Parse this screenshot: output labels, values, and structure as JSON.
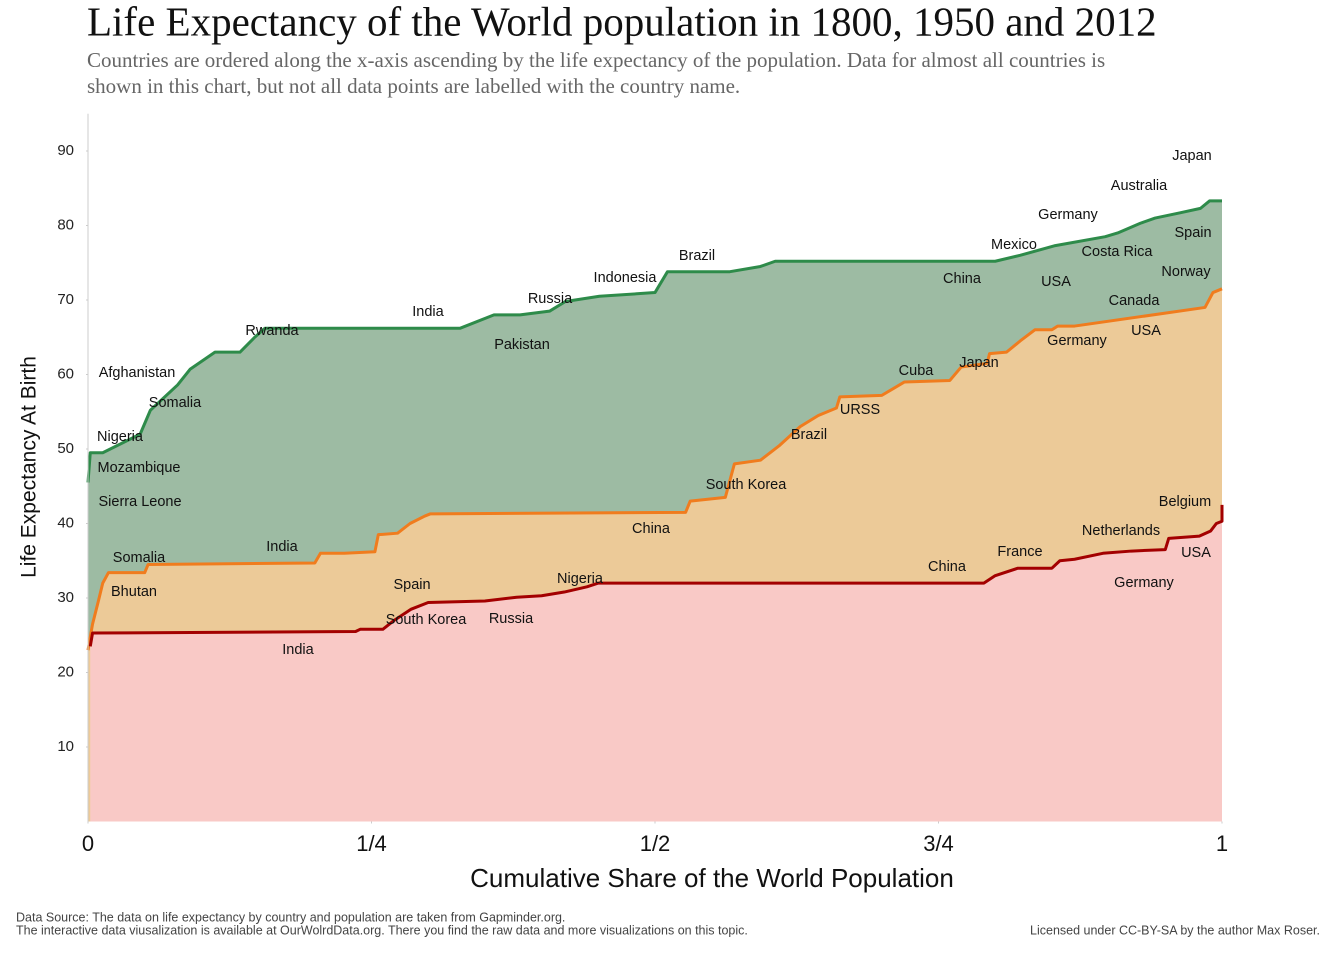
{
  "chart_data": {
    "type": "area",
    "title": "Life Expectancy of the World population in 1800, 1950 and 2012",
    "subtitle": [
      "Countries are ordered along the x-axis ascending by the life expectancy of the population. Data for almost all countries is",
      "shown in this chart, but not all data points are labelled with the country name."
    ],
    "x_label": "Cumulative Share of the World Population",
    "y_label": "Life Expectancy At Birth",
    "xlim": [
      0,
      1
    ],
    "ylim": [
      0,
      95
    ],
    "xticks": [
      0,
      {
        "value": 0.25,
        "label": "1/4"
      },
      {
        "value": 0.5,
        "label": "1/2"
      },
      {
        "value": 0.75,
        "label": "3/4"
      },
      1
    ],
    "yticks": [
      10,
      20,
      30,
      40,
      50,
      60,
      70,
      80,
      90
    ],
    "series": [
      {
        "color": "#2e8b4a",
        "fill": "#9dbba3",
        "x": [
          0,
          0.002,
          0.013,
          0.046,
          0.055,
          0.079,
          0.09,
          0.112,
          0.134,
          0.147,
          0.156,
          0.328,
          0.358,
          0.381,
          0.407,
          0.421,
          0.451,
          0.5,
          0.511,
          0.566,
          0.593,
          0.606,
          0.8,
          0.822,
          0.853,
          0.897,
          0.908,
          0.928,
          0.941,
          0.963,
          0.981,
          0.989,
          1
        ],
        "values": [
          45.5,
          49.5,
          49.5,
          52,
          55.2,
          58.6,
          60.7,
          63,
          63,
          65,
          66.2,
          66.2,
          68,
          68,
          68.5,
          69.8,
          70.5,
          71,
          73.8,
          73.8,
          74.5,
          75.2,
          75.2,
          76,
          77.3,
          78.5,
          79,
          80.3,
          81,
          81.7,
          82.3,
          83.3,
          83.3
        ]
      },
      {
        "color": "#f07c1e",
        "fill": "#ecca98",
        "x": [
          0,
          0.004,
          0.009,
          0.013,
          0.018,
          0.05,
          0.053,
          0.2,
          0.205,
          0.226,
          0.253,
          0.256,
          0.273,
          0.284,
          0.297,
          0.302,
          0.527,
          0.531,
          0.562,
          0.57,
          0.593,
          0.61,
          0.628,
          0.644,
          0.66,
          0.663,
          0.7,
          0.72,
          0.76,
          0.77,
          0.793,
          0.795,
          0.81,
          0.822,
          0.835,
          0.85,
          0.855,
          0.87,
          0.985,
          0.992,
          1
        ],
        "values": [
          23,
          26.5,
          29.5,
          32,
          33.4,
          33.4,
          34.5,
          34.7,
          36,
          36,
          36.2,
          38.5,
          38.7,
          40,
          41,
          41.3,
          41.5,
          43,
          43.5,
          48,
          48.5,
          50.5,
          53,
          54.5,
          55.5,
          57,
          57.2,
          59,
          59.2,
          61,
          61.5,
          62.8,
          63,
          64.5,
          66,
          66,
          66.5,
          66.5,
          69,
          71,
          71.5
        ]
      },
      {
        "color": "#a30000",
        "fill": "#f9c9c6",
        "x": [
          0.002,
          0.004,
          0.236,
          0.24,
          0.26,
          0.27,
          0.285,
          0.3,
          0.35,
          0.378,
          0.4,
          0.42,
          0.44,
          0.45,
          0.79,
          0.8,
          0.82,
          0.85,
          0.857,
          0.87,
          0.895,
          0.92,
          0.95,
          0.953,
          0.98,
          0.99,
          0.995,
          1,
          1
        ],
        "values": [
          23.5,
          25.3,
          25.5,
          25.8,
          25.8,
          27,
          28.5,
          29.4,
          29.6,
          30.1,
          30.3,
          30.8,
          31.5,
          32,
          32,
          33,
          34,
          34,
          35,
          35.2,
          36,
          36.3,
          36.5,
          38,
          38.3,
          39,
          40,
          40.3,
          42.5
        ]
      }
    ],
    "labels": [
      "Japan",
      "Australia",
      "Germany",
      "Spain",
      "Mexico",
      "Costa Rica",
      "Norway",
      "China",
      "USA",
      "Brazil",
      "Indonesia",
      "Russia",
      "Canada",
      "India",
      "Rwanda",
      "USA",
      "Germany",
      "Pakistan",
      "Afghanistan",
      "Cuba",
      "Japan",
      "Somalia",
      "URSS",
      "Brazil",
      "Nigeria",
      "Mozambique",
      "South Korea",
      "Sierra Leone",
      "Belgium",
      "China",
      "Netherlands",
      "India",
      "France",
      "USA",
      "Somalia",
      "China",
      "Nigeria",
      "Germany",
      "Spain",
      "Bhutan",
      "South Korea",
      "Russia",
      "India"
    ],
    "footer": [
      "Data Source: The data on life expectancy by country and population are taken from Gapminder.org.",
      "The interactive data viusalization is available at OurWolrdData.org. There you find the raw data and more visualizations on this topic.",
      "Licensed under CC-BY-SA by the author Max Roser."
    ]
  }
}
